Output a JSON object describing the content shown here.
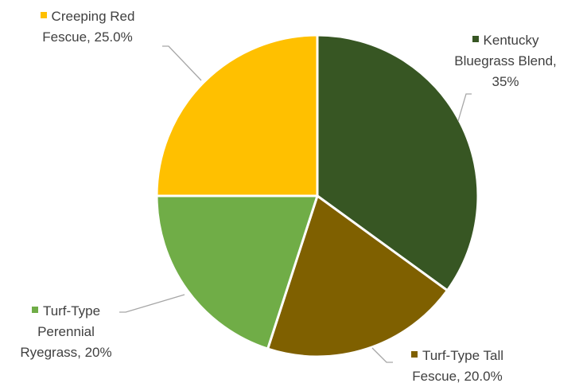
{
  "chart_data": {
    "type": "pie",
    "title": "",
    "slices": [
      {
        "name": "Kentucky Bluegrass Blend",
        "value": 35,
        "label_value": "35%",
        "color": "#375623"
      },
      {
        "name": "Turf-Type Tall Fescue",
        "value": 20,
        "label_value": "20.0%",
        "color": "#7f6000"
      },
      {
        "name": "Turf-Type Perennial Ryegrass",
        "value": 20,
        "label_value": "20%",
        "color": "#70ad47"
      },
      {
        "name": "Creeping Red Fescue",
        "value": 25,
        "label_value": "25.0%",
        "color": "#ffc000"
      }
    ],
    "labels": {
      "kentucky": {
        "l1": "Kentucky",
        "l2": "Bluegrass Blend,",
        "l3": "35%"
      },
      "tall": {
        "l1": "Turf-Type Tall",
        "l2": "Fescue, 20.0%"
      },
      "perennial": {
        "l1": "Turf-Type",
        "l2": "Perennial",
        "l3": "Ryegrass, 20%"
      },
      "creeping": {
        "l1": "Creeping Red",
        "l2": "Fescue, 25.0%"
      }
    },
    "legend": "none",
    "data_labels": "outside with leader lines"
  }
}
